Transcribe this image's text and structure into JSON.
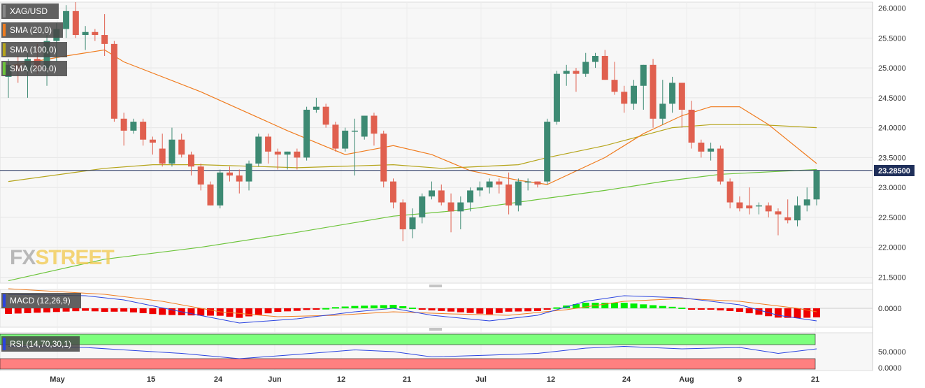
{
  "symbol": "XAG/USD",
  "current_price_label": "23.28500",
  "indicators": {
    "sma20_label": "SMA (20,0)",
    "sma100_label": "SMA (100,0)",
    "sma200_label": "SMA (200,0)",
    "macd_label": "MACD (12,26,9)",
    "rsi_label": "RSI (14,70,30,1)"
  },
  "logo": {
    "part1": "FX",
    "part2": "STREET"
  },
  "colors": {
    "bull": "#3d8a73",
    "bear": "#e0604f",
    "sma20": "#f07c1f",
    "sma100": "#b5a41a",
    "sma200": "#6cc43a",
    "macd_line": "#2b44e0",
    "signal_line": "#f07c1f",
    "hist_pos": "#00ee00",
    "hist_neg": "#ee0000",
    "rsi_line": "#2b44e0",
    "rsi_over": "#7dff7d",
    "rsi_under": "#ff8080",
    "price_line": "#1f2f5a"
  },
  "chart_data": {
    "type": "candlestick",
    "price_axis": {
      "ticks": [
        "26.0000",
        "25.5000",
        "25.0000",
        "24.5000",
        "24.0000",
        "23.5000",
        "23.0000",
        "22.5000",
        "22.0000",
        "21.5000"
      ],
      "range": [
        21.4,
        26.1
      ]
    },
    "x_axis": {
      "ticks": [
        "May",
        "15",
        "24",
        "Jun",
        "12",
        "21",
        "Jul",
        "12",
        "24",
        "Aug",
        "9",
        "21"
      ]
    },
    "current_price": 23.285,
    "candles": [
      [
        24.85,
        25.15,
        24.5,
        25.05
      ],
      [
        25.05,
        25.2,
        24.75,
        24.95
      ],
      [
        24.95,
        25.25,
        24.5,
        25.15
      ],
      [
        25.15,
        25.4,
        24.9,
        25.0
      ],
      [
        25.0,
        25.55,
        24.7,
        25.45
      ],
      [
        25.45,
        25.75,
        25.1,
        25.65
      ],
      [
        25.65,
        26.05,
        25.5,
        25.95
      ],
      [
        25.95,
        26.1,
        25.5,
        25.55
      ],
      [
        25.55,
        25.7,
        25.3,
        25.6
      ],
      [
        25.6,
        25.65,
        25.45,
        25.55
      ],
      [
        25.55,
        25.9,
        25.2,
        25.4
      ],
      [
        25.4,
        25.45,
        24.1,
        24.15
      ],
      [
        24.15,
        24.25,
        23.7,
        23.95
      ],
      [
        23.95,
        24.15,
        23.9,
        24.1
      ],
      [
        24.1,
        24.15,
        23.7,
        23.8
      ],
      [
        23.8,
        23.85,
        23.55,
        23.75
      ],
      [
        23.65,
        23.9,
        23.35,
        23.4
      ],
      [
        23.4,
        24.0,
        23.35,
        23.8
      ],
      [
        23.8,
        23.9,
        23.5,
        23.55
      ],
      [
        23.55,
        23.6,
        23.2,
        23.35
      ],
      [
        23.35,
        23.4,
        22.95,
        23.05
      ],
      [
        23.05,
        23.1,
        22.7,
        22.7
      ],
      [
        22.7,
        23.3,
        22.65,
        23.25
      ],
      [
        23.25,
        23.35,
        23.1,
        23.2
      ],
      [
        23.2,
        23.3,
        22.9,
        23.1
      ],
      [
        23.1,
        23.45,
        22.95,
        23.4
      ],
      [
        23.4,
        23.9,
        23.35,
        23.85
      ],
      [
        23.85,
        23.9,
        23.4,
        23.6
      ],
      [
        23.6,
        23.65,
        23.3,
        23.55
      ],
      [
        23.55,
        23.6,
        23.3,
        23.6
      ],
      [
        23.6,
        23.65,
        23.3,
        23.5
      ],
      [
        23.5,
        24.35,
        23.45,
        24.3
      ],
      [
        24.3,
        24.5,
        24.25,
        24.35
      ],
      [
        24.35,
        24.4,
        24.0,
        24.05
      ],
      [
        24.05,
        24.1,
        23.6,
        23.65
      ],
      [
        23.65,
        24.0,
        23.6,
        23.95
      ],
      [
        23.95,
        24.15,
        23.2,
        23.95
      ],
      [
        23.85,
        24.2,
        23.8,
        24.2
      ],
      [
        24.2,
        24.25,
        23.7,
        23.9
      ],
      [
        23.9,
        23.95,
        23.0,
        23.1
      ],
      [
        23.1,
        23.15,
        22.65,
        22.75
      ],
      [
        22.75,
        22.8,
        22.1,
        22.3
      ],
      [
        22.3,
        22.65,
        22.15,
        22.5
      ],
      [
        22.5,
        22.9,
        22.4,
        22.85
      ],
      [
        22.85,
        23.1,
        22.8,
        22.95
      ],
      [
        22.95,
        23.05,
        22.7,
        22.75
      ],
      [
        22.75,
        22.9,
        22.25,
        22.6
      ],
      [
        22.6,
        22.85,
        22.3,
        22.75
      ],
      [
        22.75,
        23.0,
        22.6,
        22.95
      ],
      [
        22.95,
        23.1,
        22.85,
        23.0
      ],
      [
        23.0,
        23.15,
        22.9,
        23.1
      ],
      [
        23.1,
        23.15,
        22.9,
        23.05
      ],
      [
        23.05,
        23.25,
        22.55,
        22.7
      ],
      [
        22.7,
        23.15,
        22.6,
        23.1
      ],
      [
        23.1,
        23.15,
        22.95,
        23.1
      ],
      [
        23.1,
        23.1,
        23.0,
        23.05
      ],
      [
        23.1,
        24.15,
        23.05,
        24.1
      ],
      [
        24.1,
        24.95,
        24.05,
        24.9
      ],
      [
        24.9,
        25.05,
        24.7,
        24.95
      ],
      [
        24.95,
        25.0,
        24.6,
        24.9
      ],
      [
        24.9,
        25.25,
        24.85,
        25.1
      ],
      [
        25.1,
        25.25,
        25.0,
        25.2
      ],
      [
        25.2,
        25.3,
        24.8,
        24.8
      ],
      [
        24.8,
        25.1,
        24.55,
        24.6
      ],
      [
        24.6,
        24.7,
        24.25,
        24.4
      ],
      [
        24.4,
        24.8,
        24.3,
        24.7
      ],
      [
        24.7,
        25.05,
        24.3,
        25.05
      ],
      [
        25.05,
        25.15,
        24.0,
        24.15
      ],
      [
        24.15,
        24.8,
        24.05,
        24.4
      ],
      [
        24.4,
        24.85,
        24.25,
        24.75
      ],
      [
        24.75,
        24.75,
        24.0,
        24.3
      ],
      [
        24.3,
        24.45,
        23.65,
        23.75
      ],
      [
        23.75,
        23.8,
        23.5,
        23.6
      ],
      [
        23.6,
        23.75,
        23.45,
        23.65
      ],
      [
        23.65,
        23.7,
        23.05,
        23.1
      ],
      [
        23.1,
        23.15,
        22.65,
        22.75
      ],
      [
        22.75,
        22.85,
        22.6,
        22.65
      ],
      [
        22.7,
        23.0,
        22.55,
        22.65
      ],
      [
        22.7,
        22.75,
        22.55,
        22.7
      ],
      [
        22.7,
        22.75,
        22.5,
        22.6
      ],
      [
        22.6,
        22.65,
        22.2,
        22.55
      ],
      [
        22.5,
        22.8,
        22.4,
        22.45
      ],
      [
        22.45,
        22.85,
        22.35,
        22.7
      ],
      [
        22.7,
        23.0,
        22.6,
        22.8
      ],
      [
        22.8,
        23.3,
        22.7,
        23.28
      ]
    ],
    "sma20": [
      [
        0,
        25.03
      ],
      [
        6,
        25.2
      ],
      [
        10,
        25.3
      ],
      [
        12,
        25.1
      ],
      [
        20,
        24.6
      ],
      [
        29,
        23.95
      ],
      [
        35,
        23.55
      ],
      [
        40,
        23.7
      ],
      [
        44,
        23.55
      ],
      [
        48,
        23.28
      ],
      [
        53,
        23.12
      ],
      [
        56,
        23.05
      ],
      [
        62,
        23.5
      ],
      [
        66,
        23.9
      ],
      [
        70,
        24.2
      ],
      [
        73,
        24.35
      ],
      [
        76,
        24.35
      ],
      [
        79,
        24.05
      ],
      [
        84,
        23.4
      ]
    ],
    "sma100": [
      [
        0,
        23.1
      ],
      [
        10,
        23.32
      ],
      [
        15,
        23.38
      ],
      [
        20,
        23.38
      ],
      [
        30,
        23.33
      ],
      [
        40,
        23.38
      ],
      [
        45,
        23.32
      ],
      [
        53,
        23.38
      ],
      [
        56,
        23.5
      ],
      [
        62,
        23.7
      ],
      [
        69,
        24.0
      ],
      [
        73,
        24.05
      ],
      [
        78,
        24.05
      ],
      [
        84,
        24.0
      ]
    ],
    "sma200": [
      [
        0,
        21.44
      ],
      [
        10,
        21.8
      ],
      [
        20,
        22.0
      ],
      [
        30,
        22.25
      ],
      [
        40,
        22.52
      ],
      [
        47,
        22.62
      ],
      [
        56,
        22.82
      ],
      [
        62,
        22.95
      ],
      [
        68,
        23.1
      ],
      [
        74,
        23.22
      ],
      [
        84,
        23.3
      ]
    ],
    "macd": {
      "range": [
        -0.25,
        0.25
      ],
      "zero_label": "0.0000",
      "macd_line": [
        [
          0,
          0.2
        ],
        [
          8,
          0.18
        ],
        [
          12,
          0.12
        ],
        [
          18,
          -0.05
        ],
        [
          24,
          -0.21
        ],
        [
          30,
          -0.15
        ],
        [
          36,
          -0.05
        ],
        [
          40,
          0.0
        ],
        [
          44,
          -0.1
        ],
        [
          50,
          -0.18
        ],
        [
          55,
          -0.1
        ],
        [
          60,
          0.1
        ],
        [
          64,
          0.18
        ],
        [
          70,
          0.15
        ],
        [
          76,
          0.05
        ],
        [
          80,
          -0.1
        ],
        [
          84,
          -0.18
        ]
      ],
      "signal_line": [
        [
          0,
          0.28
        ],
        [
          10,
          0.2
        ],
        [
          16,
          0.1
        ],
        [
          22,
          -0.05
        ],
        [
          28,
          -0.12
        ],
        [
          34,
          -0.1
        ],
        [
          40,
          -0.05
        ],
        [
          46,
          -0.08
        ],
        [
          52,
          -0.1
        ],
        [
          58,
          -0.02
        ],
        [
          64,
          0.1
        ],
        [
          70,
          0.14
        ],
        [
          76,
          0.1
        ],
        [
          82,
          0.0
        ],
        [
          84,
          -0.05
        ]
      ]
    },
    "rsi": {
      "levels": [
        "50.0000",
        "0.0000"
      ],
      "overbought": 70,
      "oversold": 30,
      "line": [
        [
          0,
          65
        ],
        [
          8,
          62
        ],
        [
          12,
          55
        ],
        [
          18,
          45
        ],
        [
          24,
          30
        ],
        [
          30,
          42
        ],
        [
          36,
          55
        ],
        [
          40,
          50
        ],
        [
          44,
          35
        ],
        [
          50,
          40
        ],
        [
          55,
          45
        ],
        [
          60,
          60
        ],
        [
          64,
          65
        ],
        [
          70,
          58
        ],
        [
          76,
          62
        ],
        [
          80,
          45
        ],
        [
          84,
          58
        ]
      ]
    }
  }
}
